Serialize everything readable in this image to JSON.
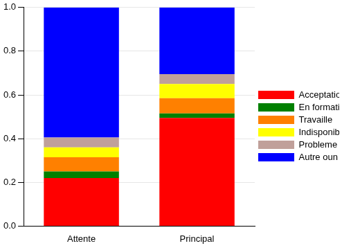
{
  "chart_data": {
    "type": "bar",
    "stacked": true,
    "grid": true,
    "legend": "right",
    "categories": [
      "Attente",
      "Principal"
    ],
    "series": [
      {
        "name": "Acceptation",
        "color": "#ff0000",
        "values": [
          0.22,
          0.495
        ]
      },
      {
        "name": "En formation",
        "color": "#008000",
        "values": [
          0.03,
          0.02
        ]
      },
      {
        "name": "Travaille",
        "color": "#ff8000",
        "values": [
          0.065,
          0.07
        ]
      },
      {
        "name": "Indisponible",
        "color": "#ffff00",
        "values": [
          0.045,
          0.065
        ]
      },
      {
        "name": "Probleme d'orientation",
        "color": "#c0a09a",
        "values": [
          0.045,
          0.045
        ]
      },
      {
        "name": "Autre oun pas de réponse",
        "color": "#0000ff",
        "values": [
          0.595,
          0.305
        ]
      }
    ],
    "ylim": [
      0,
      1
    ],
    "yticks": [
      {
        "value": 0,
        "label": "0.0"
      },
      0.2,
      0.4,
      0.6,
      0.8,
      {
        "value": 1,
        "label": "1.0"
      }
    ]
  }
}
